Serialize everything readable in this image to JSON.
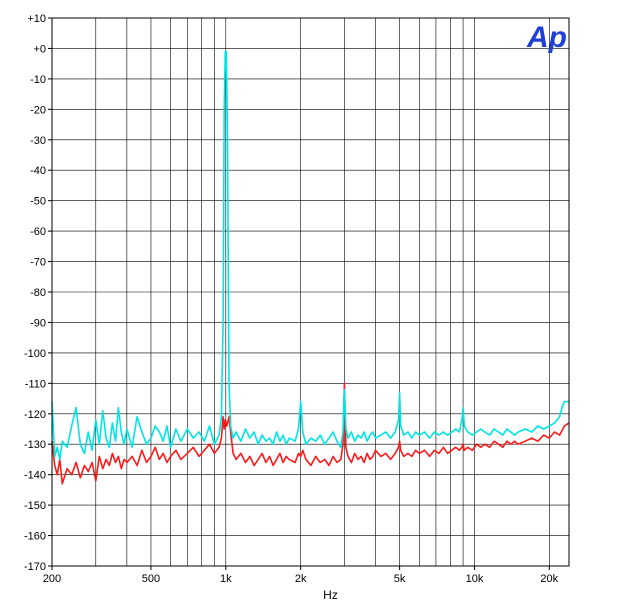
{
  "chart_data": {
    "type": "line",
    "title": "",
    "xlabel": "Hz",
    "ylabel": "",
    "x_scale": "log",
    "xlim": [
      200,
      24000
    ],
    "ylim": [
      -170,
      10
    ],
    "grid": true,
    "legend": "none",
    "brand_mark": "Ap",
    "x_ticks": [
      {
        "value": 200,
        "label": "200"
      },
      {
        "value": 500,
        "label": "500"
      },
      {
        "value": 1000,
        "label": "1k"
      },
      {
        "value": 2000,
        "label": "2k"
      },
      {
        "value": 5000,
        "label": "5k"
      },
      {
        "value": 10000,
        "label": "10k"
      },
      {
        "value": 20000,
        "label": "20k"
      }
    ],
    "x_grid": [
      200,
      300,
      400,
      500,
      600,
      700,
      800,
      900,
      1000,
      2000,
      3000,
      4000,
      5000,
      6000,
      7000,
      8000,
      9000,
      10000,
      20000
    ],
    "y_ticks": [
      {
        "value": 10,
        "label": "+10"
      },
      {
        "value": 0,
        "label": "+0"
      },
      {
        "value": -10,
        "label": "-10"
      },
      {
        "value": -20,
        "label": "-20"
      },
      {
        "value": -30,
        "label": "-30"
      },
      {
        "value": -40,
        "label": "-40"
      },
      {
        "value": -50,
        "label": "-50"
      },
      {
        "value": -60,
        "label": "-60"
      },
      {
        "value": -70,
        "label": "-70"
      },
      {
        "value": -80,
        "label": "-80"
      },
      {
        "value": -90,
        "label": "-90"
      },
      {
        "value": -100,
        "label": "-100"
      },
      {
        "value": -110,
        "label": "-110"
      },
      {
        "value": -120,
        "label": "-120"
      },
      {
        "value": -130,
        "label": "-130"
      },
      {
        "value": -140,
        "label": "-140"
      },
      {
        "value": -150,
        "label": "-150"
      },
      {
        "value": -160,
        "label": "-160"
      },
      {
        "value": -170,
        "label": "-170"
      }
    ],
    "series": [
      {
        "color": "#00e5e5",
        "points": [
          [
            200,
            -116
          ],
          [
            205,
            -134
          ],
          [
            210,
            -131
          ],
          [
            215,
            -135
          ],
          [
            220,
            -129
          ],
          [
            230,
            -131
          ],
          [
            240,
            -124
          ],
          [
            250,
            -118
          ],
          [
            260,
            -130
          ],
          [
            270,
            -133
          ],
          [
            280,
            -126
          ],
          [
            290,
            -132
          ],
          [
            300,
            -122
          ],
          [
            310,
            -130
          ],
          [
            320,
            -119
          ],
          [
            330,
            -128
          ],
          [
            340,
            -131
          ],
          [
            350,
            -123
          ],
          [
            360,
            -129
          ],
          [
            370,
            -118
          ],
          [
            380,
            -126
          ],
          [
            390,
            -130
          ],
          [
            400,
            -125
          ],
          [
            420,
            -131
          ],
          [
            440,
            -121
          ],
          [
            460,
            -126
          ],
          [
            480,
            -130
          ],
          [
            500,
            -128
          ],
          [
            520,
            -124
          ],
          [
            540,
            -126
          ],
          [
            560,
            -129
          ],
          [
            580,
            -124
          ],
          [
            600,
            -131
          ],
          [
            630,
            -125
          ],
          [
            660,
            -129
          ],
          [
            700,
            -125
          ],
          [
            740,
            -128
          ],
          [
            780,
            -126
          ],
          [
            820,
            -129
          ],
          [
            860,
            -124
          ],
          [
            900,
            -130
          ],
          [
            940,
            -127
          ],
          [
            960,
            -121
          ],
          [
            975,
            -90
          ],
          [
            985,
            -20
          ],
          [
            995,
            -1
          ],
          [
            1005,
            -1
          ],
          [
            1015,
            -25
          ],
          [
            1030,
            -110
          ],
          [
            1045,
            -124
          ],
          [
            1070,
            -128
          ],
          [
            1100,
            -126
          ],
          [
            1150,
            -129
          ],
          [
            1200,
            -125
          ],
          [
            1250,
            -128
          ],
          [
            1300,
            -126
          ],
          [
            1350,
            -130
          ],
          [
            1400,
            -127
          ],
          [
            1450,
            -129
          ],
          [
            1500,
            -128
          ],
          [
            1550,
            -130
          ],
          [
            1600,
            -126
          ],
          [
            1650,
            -129
          ],
          [
            1700,
            -127
          ],
          [
            1750,
            -130
          ],
          [
            1800,
            -128
          ],
          [
            1900,
            -129
          ],
          [
            1960,
            -125
          ],
          [
            2000,
            -116
          ],
          [
            2040,
            -126
          ],
          [
            2100,
            -130
          ],
          [
            2200,
            -128
          ],
          [
            2300,
            -129
          ],
          [
            2400,
            -127
          ],
          [
            2500,
            -130
          ],
          [
            2600,
            -128
          ],
          [
            2700,
            -126
          ],
          [
            2800,
            -129
          ],
          [
            2900,
            -131
          ],
          [
            2960,
            -126
          ],
          [
            3000,
            -112
          ],
          [
            3040,
            -125
          ],
          [
            3100,
            -128
          ],
          [
            3200,
            -126
          ],
          [
            3300,
            -129
          ],
          [
            3400,
            -127
          ],
          [
            3500,
            -128
          ],
          [
            3600,
            -126
          ],
          [
            3700,
            -129
          ],
          [
            3800,
            -127
          ],
          [
            3900,
            -126
          ],
          [
            4000,
            -128
          ],
          [
            4200,
            -127
          ],
          [
            4400,
            -126
          ],
          [
            4600,
            -128
          ],
          [
            4800,
            -126
          ],
          [
            4950,
            -122
          ],
          [
            5000,
            -113
          ],
          [
            5050,
            -124
          ],
          [
            5200,
            -127
          ],
          [
            5400,
            -126
          ],
          [
            5600,
            -128
          ],
          [
            5800,
            -126
          ],
          [
            6000,
            -127
          ],
          [
            6300,
            -126
          ],
          [
            6600,
            -128
          ],
          [
            6900,
            -126
          ],
          [
            7200,
            -127
          ],
          [
            7500,
            -126
          ],
          [
            7800,
            -127
          ],
          [
            8100,
            -126
          ],
          [
            8400,
            -125
          ],
          [
            8700,
            -126
          ],
          [
            8900,
            -122
          ],
          [
            9000,
            -118
          ],
          [
            9100,
            -124
          ],
          [
            9400,
            -126
          ],
          [
            9800,
            -127
          ],
          [
            10200,
            -126
          ],
          [
            10600,
            -125
          ],
          [
            11000,
            -126
          ],
          [
            11500,
            -127
          ],
          [
            12000,
            -125
          ],
          [
            12500,
            -126
          ],
          [
            13000,
            -127
          ],
          [
            13500,
            -125
          ],
          [
            14000,
            -126
          ],
          [
            14500,
            -127
          ],
          [
            15000,
            -126
          ],
          [
            16000,
            -125
          ],
          [
            17000,
            -126
          ],
          [
            18000,
            -124
          ],
          [
            19000,
            -125
          ],
          [
            20000,
            -124
          ],
          [
            21000,
            -123
          ],
          [
            22000,
            -121
          ],
          [
            22500,
            -118
          ],
          [
            23000,
            -116
          ],
          [
            24000,
            -116
          ]
        ]
      },
      {
        "color": "#ff1a1a",
        "points": [
          [
            200,
            -129
          ],
          [
            205,
            -137
          ],
          [
            210,
            -140
          ],
          [
            215,
            -135
          ],
          [
            220,
            -143
          ],
          [
            230,
            -138
          ],
          [
            240,
            -140
          ],
          [
            250,
            -136
          ],
          [
            260,
            -141
          ],
          [
            270,
            -137
          ],
          [
            280,
            -139
          ],
          [
            290,
            -136
          ],
          [
            300,
            -142
          ],
          [
            310,
            -134
          ],
          [
            320,
            -138
          ],
          [
            330,
            -135
          ],
          [
            340,
            -137
          ],
          [
            350,
            -133
          ],
          [
            360,
            -136
          ],
          [
            370,
            -134
          ],
          [
            380,
            -138
          ],
          [
            390,
            -135
          ],
          [
            400,
            -136
          ],
          [
            420,
            -134
          ],
          [
            440,
            -137
          ],
          [
            460,
            -132
          ],
          [
            480,
            -136
          ],
          [
            500,
            -134
          ],
          [
            520,
            -131
          ],
          [
            540,
            -135
          ],
          [
            560,
            -133
          ],
          [
            580,
            -136
          ],
          [
            600,
            -134
          ],
          [
            630,
            -132
          ],
          [
            660,
            -135
          ],
          [
            700,
            -133
          ],
          [
            740,
            -131
          ],
          [
            780,
            -134
          ],
          [
            820,
            -132
          ],
          [
            860,
            -130
          ],
          [
            900,
            -133
          ],
          [
            940,
            -131
          ],
          [
            960,
            -128
          ],
          [
            975,
            -121
          ],
          [
            985,
            -125
          ],
          [
            995,
            -122
          ],
          [
            1010,
            -124
          ],
          [
            1030,
            -121
          ],
          [
            1045,
            -126
          ],
          [
            1070,
            -133
          ],
          [
            1100,
            -135
          ],
          [
            1150,
            -133
          ],
          [
            1200,
            -136
          ],
          [
            1250,
            -134
          ],
          [
            1300,
            -137
          ],
          [
            1350,
            -135
          ],
          [
            1400,
            -133
          ],
          [
            1450,
            -136
          ],
          [
            1500,
            -134
          ],
          [
            1550,
            -137
          ],
          [
            1600,
            -135
          ],
          [
            1650,
            -133
          ],
          [
            1700,
            -136
          ],
          [
            1750,
            -134
          ],
          [
            1800,
            -135
          ],
          [
            1900,
            -136
          ],
          [
            1960,
            -133
          ],
          [
            2000,
            -134
          ],
          [
            2040,
            -132
          ],
          [
            2100,
            -135
          ],
          [
            2200,
            -137
          ],
          [
            2300,
            -134
          ],
          [
            2400,
            -136
          ],
          [
            2500,
            -135
          ],
          [
            2600,
            -137
          ],
          [
            2700,
            -134
          ],
          [
            2800,
            -136
          ],
          [
            2900,
            -135
          ],
          [
            2960,
            -130
          ],
          [
            3000,
            -110
          ],
          [
            3040,
            -131
          ],
          [
            3100,
            -134
          ],
          [
            3200,
            -136
          ],
          [
            3300,
            -133
          ],
          [
            3400,
            -135
          ],
          [
            3500,
            -134
          ],
          [
            3600,
            -136
          ],
          [
            3700,
            -133
          ],
          [
            3800,
            -135
          ],
          [
            3900,
            -134
          ],
          [
            4000,
            -132
          ],
          [
            4200,
            -134
          ],
          [
            4400,
            -133
          ],
          [
            4600,
            -135
          ],
          [
            4800,
            -133
          ],
          [
            4950,
            -131
          ],
          [
            5000,
            -129
          ],
          [
            5050,
            -132
          ],
          [
            5200,
            -134
          ],
          [
            5400,
            -133
          ],
          [
            5600,
            -134
          ],
          [
            5800,
            -132
          ],
          [
            6000,
            -133
          ],
          [
            6300,
            -132
          ],
          [
            6600,
            -134
          ],
          [
            6900,
            -132
          ],
          [
            7200,
            -133
          ],
          [
            7500,
            -131
          ],
          [
            7800,
            -133
          ],
          [
            8100,
            -132
          ],
          [
            8400,
            -131
          ],
          [
            8700,
            -132
          ],
          [
            8900,
            -131
          ],
          [
            9000,
            -130
          ],
          [
            9100,
            -132
          ],
          [
            9400,
            -131
          ],
          [
            9800,
            -132
          ],
          [
            10200,
            -130
          ],
          [
            10600,
            -131
          ],
          [
            11000,
            -130
          ],
          [
            11500,
            -131
          ],
          [
            12000,
            -129
          ],
          [
            12500,
            -130
          ],
          [
            13000,
            -131
          ],
          [
            13500,
            -129
          ],
          [
            14000,
            -130
          ],
          [
            14500,
            -129
          ],
          [
            15000,
            -130
          ],
          [
            16000,
            -129
          ],
          [
            17000,
            -128
          ],
          [
            18000,
            -129
          ],
          [
            19000,
            -127
          ],
          [
            20000,
            -128
          ],
          [
            21000,
            -126
          ],
          [
            22000,
            -127
          ],
          [
            23000,
            -124
          ],
          [
            24000,
            -123
          ]
        ]
      }
    ]
  }
}
